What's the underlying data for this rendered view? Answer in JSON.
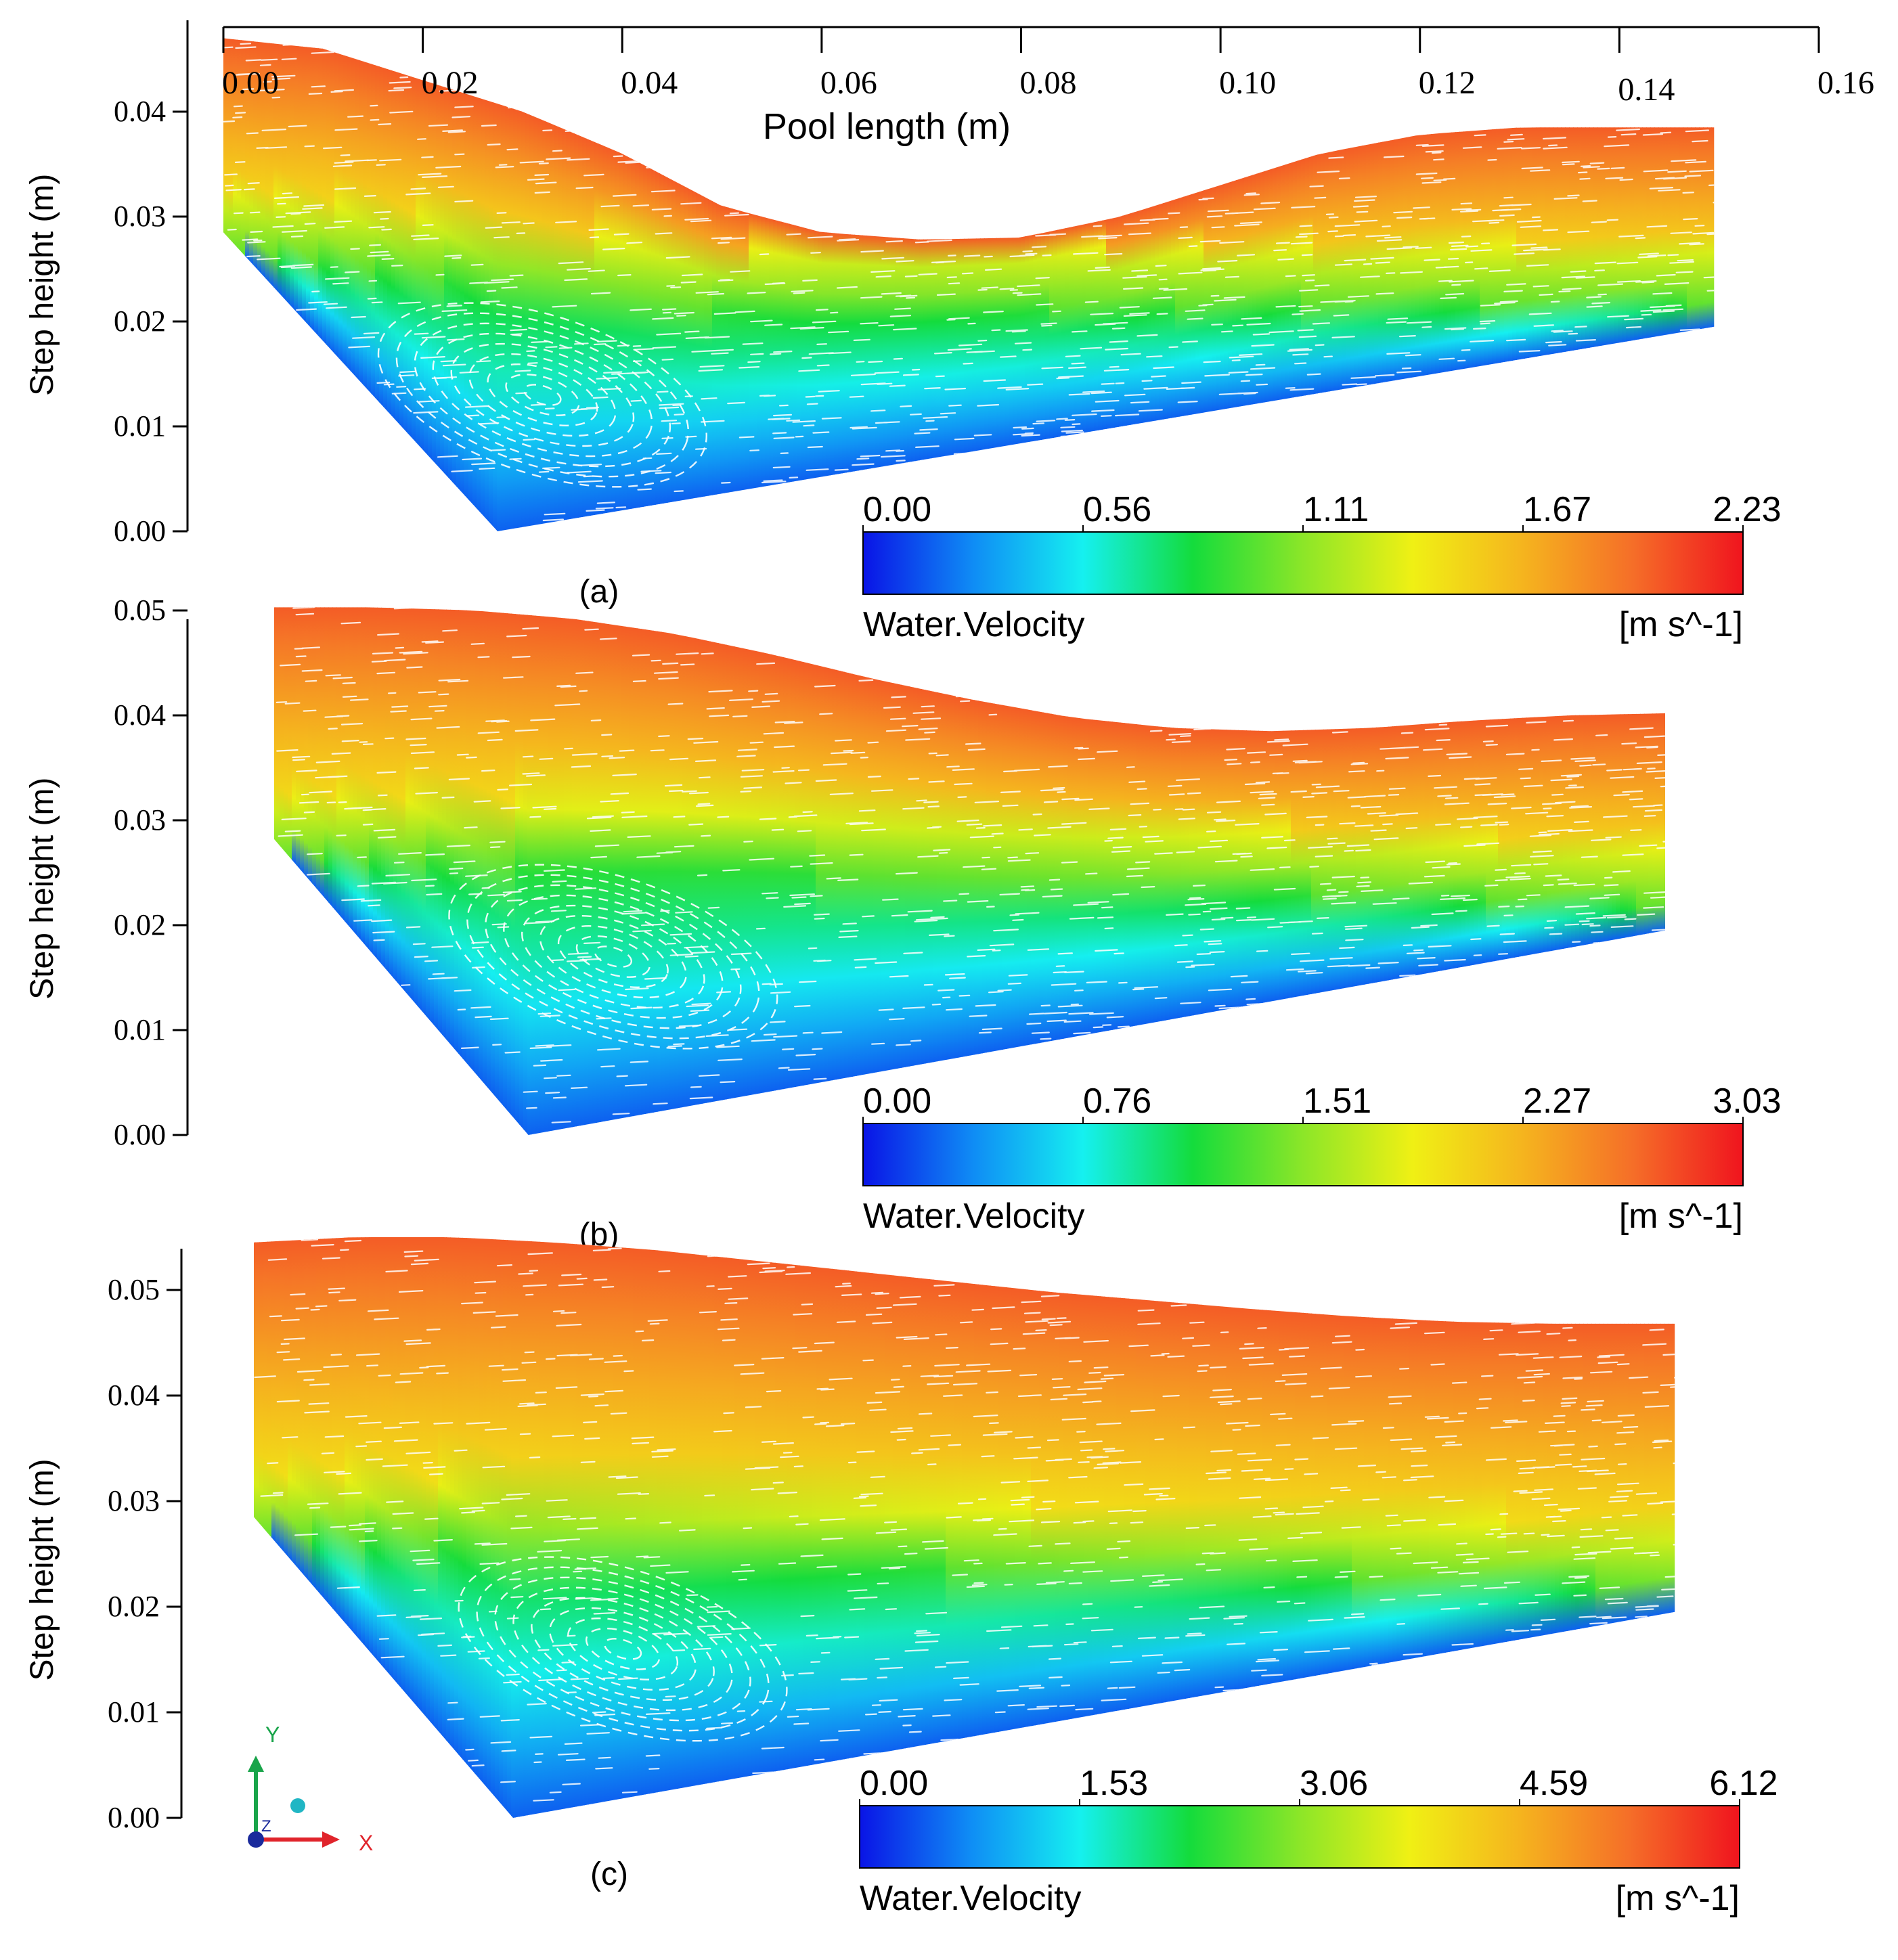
{
  "figure": {
    "x_axis_title": "Pool length (m)",
    "x_ticks": [
      "0.00",
      "0.02",
      "0.04",
      "0.06",
      "0.08",
      "0.10",
      "0.12",
      "0.14",
      "0.16"
    ],
    "triad": {
      "y": "Y",
      "x": "X",
      "z": "Z"
    }
  },
  "colors": {
    "ramp": [
      "#0a14e6",
      "#0f8cf5",
      "#15f0f0",
      "#14dc3c",
      "#8ce628",
      "#f0f014",
      "#f5b41e",
      "#f56e28",
      "#f0141e"
    ],
    "axis": "#000000",
    "triad_y": "#19a44a",
    "triad_x": "#e0242b",
    "triad_z": "#1a2a9c",
    "triad_dot": "#20b6c4"
  },
  "chart_data": [
    {
      "type": "heatmap",
      "panel_label": "(a)",
      "title": "",
      "xlabel": "Pool length (m)",
      "ylabel": "Step height (m)",
      "xlim": [
        0.0,
        0.16
      ],
      "ylim": [
        0.0,
        0.047
      ],
      "y_ticks": [
        "0.00",
        "0.01",
        "0.02",
        "0.03",
        "0.04"
      ],
      "y_tick_values": [
        0.0,
        0.01,
        0.02,
        0.03,
        0.04
      ],
      "colorbar": {
        "label": "Water.Velocity",
        "unit": "[m s^-1]",
        "min": 0.0,
        "max": 2.23,
        "ticks": [
          "0.00",
          "0.56",
          "1.11",
          "1.67",
          "2.23"
        ]
      },
      "domain": {
        "x_start": 0.0,
        "x_end": 0.1495,
        "bed_start_y": 0.0285,
        "corner_x": 0.0275,
        "corner_y": 0.0,
        "end_bed_y": 0.0195,
        "surface": [
          [
            0.0,
            0.047
          ],
          [
            0.01,
            0.046
          ],
          [
            0.02,
            0.043
          ],
          [
            0.03,
            0.04
          ],
          [
            0.04,
            0.036
          ],
          [
            0.05,
            0.031
          ],
          [
            0.06,
            0.0285
          ],
          [
            0.07,
            0.0278
          ],
          [
            0.08,
            0.028
          ],
          [
            0.09,
            0.03
          ],
          [
            0.1,
            0.033
          ],
          [
            0.11,
            0.036
          ],
          [
            0.12,
            0.0378
          ],
          [
            0.13,
            0.0385
          ],
          [
            0.14,
            0.0385
          ],
          [
            0.1495,
            0.0385
          ]
        ],
        "vortex_center": [
          0.032,
          0.013
        ]
      }
    },
    {
      "type": "heatmap",
      "panel_label": "(b)",
      "title": "",
      "xlabel": "",
      "ylabel": "Step height (m)",
      "xlim": [
        0.0,
        0.16
      ],
      "ylim": [
        0.0,
        0.05
      ],
      "y_ticks": [
        "0.00",
        "0.01",
        "0.02",
        "0.03",
        "0.04",
        "0.05"
      ],
      "y_tick_values": [
        0.0,
        0.01,
        0.02,
        0.03,
        0.04,
        0.05
      ],
      "colorbar": {
        "label": "Water.Velocity",
        "unit": "[m s^-1]",
        "min": 0.0,
        "max": 3.03,
        "ticks": [
          "0.00",
          "0.76",
          "1.51",
          "2.27",
          "3.03"
        ]
      },
      "domain": {
        "x_start": 0.0,
        "x_end": 0.1395,
        "bed_start_y": 0.0282,
        "corner_x": 0.0255,
        "corner_y": 0.0,
        "end_bed_y": 0.0195,
        "surface": [
          [
            0.0,
            0.0503
          ],
          [
            0.01,
            0.0503
          ],
          [
            0.02,
            0.05
          ],
          [
            0.03,
            0.0492
          ],
          [
            0.04,
            0.0478
          ],
          [
            0.05,
            0.0458
          ],
          [
            0.06,
            0.0435
          ],
          [
            0.07,
            0.0415
          ],
          [
            0.08,
            0.0398
          ],
          [
            0.09,
            0.0388
          ],
          [
            0.1,
            0.0385
          ],
          [
            0.11,
            0.0388
          ],
          [
            0.12,
            0.0395
          ],
          [
            0.13,
            0.04
          ],
          [
            0.1395,
            0.0402
          ]
        ],
        "vortex_center": [
          0.034,
          0.017
        ]
      }
    },
    {
      "type": "heatmap",
      "panel_label": "(c)",
      "title": "",
      "xlabel": "",
      "ylabel": "Step height (m)",
      "xlim": [
        0.0,
        0.16
      ],
      "ylim": [
        0.0,
        0.055
      ],
      "y_ticks": [
        "0.00",
        "0.01",
        "0.02",
        "0.03",
        "0.04",
        "0.05"
      ],
      "y_tick_values": [
        0.0,
        0.01,
        0.02,
        0.03,
        0.04,
        0.05
      ],
      "colorbar": {
        "label": "Water.Velocity",
        "unit": "[m s^-1]",
        "min": 0.0,
        "max": 6.12,
        "ticks": [
          "0.00",
          "1.53",
          "3.06",
          "4.59",
          "6.12"
        ]
      },
      "domain": {
        "x_start": 0.0,
        "x_end": 0.1425,
        "bed_start_y": 0.0285,
        "corner_x": 0.026,
        "corner_y": 0.0,
        "end_bed_y": 0.0195,
        "surface": [
          [
            0.0,
            0.0545
          ],
          [
            0.01,
            0.055
          ],
          [
            0.02,
            0.055
          ],
          [
            0.03,
            0.0545
          ],
          [
            0.04,
            0.0538
          ],
          [
            0.05,
            0.0528
          ],
          [
            0.06,
            0.0518
          ],
          [
            0.07,
            0.0508
          ],
          [
            0.08,
            0.0498
          ],
          [
            0.09,
            0.049
          ],
          [
            0.1,
            0.0482
          ],
          [
            0.11,
            0.0475
          ],
          [
            0.12,
            0.047
          ],
          [
            0.13,
            0.0468
          ],
          [
            0.1425,
            0.0468
          ]
        ],
        "vortex_center": [
          0.037,
          0.016
        ]
      }
    }
  ]
}
